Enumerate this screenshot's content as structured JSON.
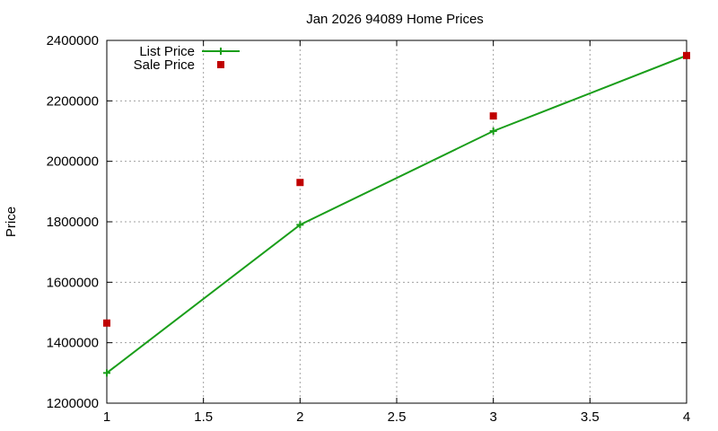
{
  "chart_data": {
    "type": "line",
    "title": "Jan 2026 94089 Home Prices",
    "xlabel": "",
    "ylabel": "Price",
    "xlim": [
      1,
      4
    ],
    "ylim": [
      1200000,
      2400000
    ],
    "x_ticks": [
      1,
      1.5,
      2,
      2.5,
      3,
      3.5,
      4
    ],
    "x_tick_labels": [
      "1",
      "1.5",
      "2",
      "2.5",
      "3",
      "3.5",
      "4"
    ],
    "y_ticks": [
      1200000,
      1400000,
      1600000,
      1800000,
      2000000,
      2200000,
      2400000
    ],
    "y_tick_labels": [
      "1200000",
      "1400000",
      "1600000",
      "1800000",
      "2000000",
      "2200000",
      "2400000"
    ],
    "grid": true,
    "legend_position": "top-left",
    "series": [
      {
        "name": "List Price",
        "style": "linespoints",
        "marker": "plus",
        "color": "#1a9e1a",
        "points": [
          {
            "x": 1,
            "y": 1300000
          },
          {
            "x": 2,
            "y": 1790000
          },
          {
            "x": 3,
            "y": 2100000
          },
          {
            "x": 4,
            "y": 2350000
          }
        ]
      },
      {
        "name": "Sale Price",
        "style": "points",
        "marker": "square",
        "color": "#c00000",
        "points": [
          {
            "x": 1,
            "y": 1465000
          },
          {
            "x": 2,
            "y": 1930000
          },
          {
            "x": 3,
            "y": 2150000
          },
          {
            "x": 4,
            "y": 2350000
          }
        ]
      }
    ]
  }
}
